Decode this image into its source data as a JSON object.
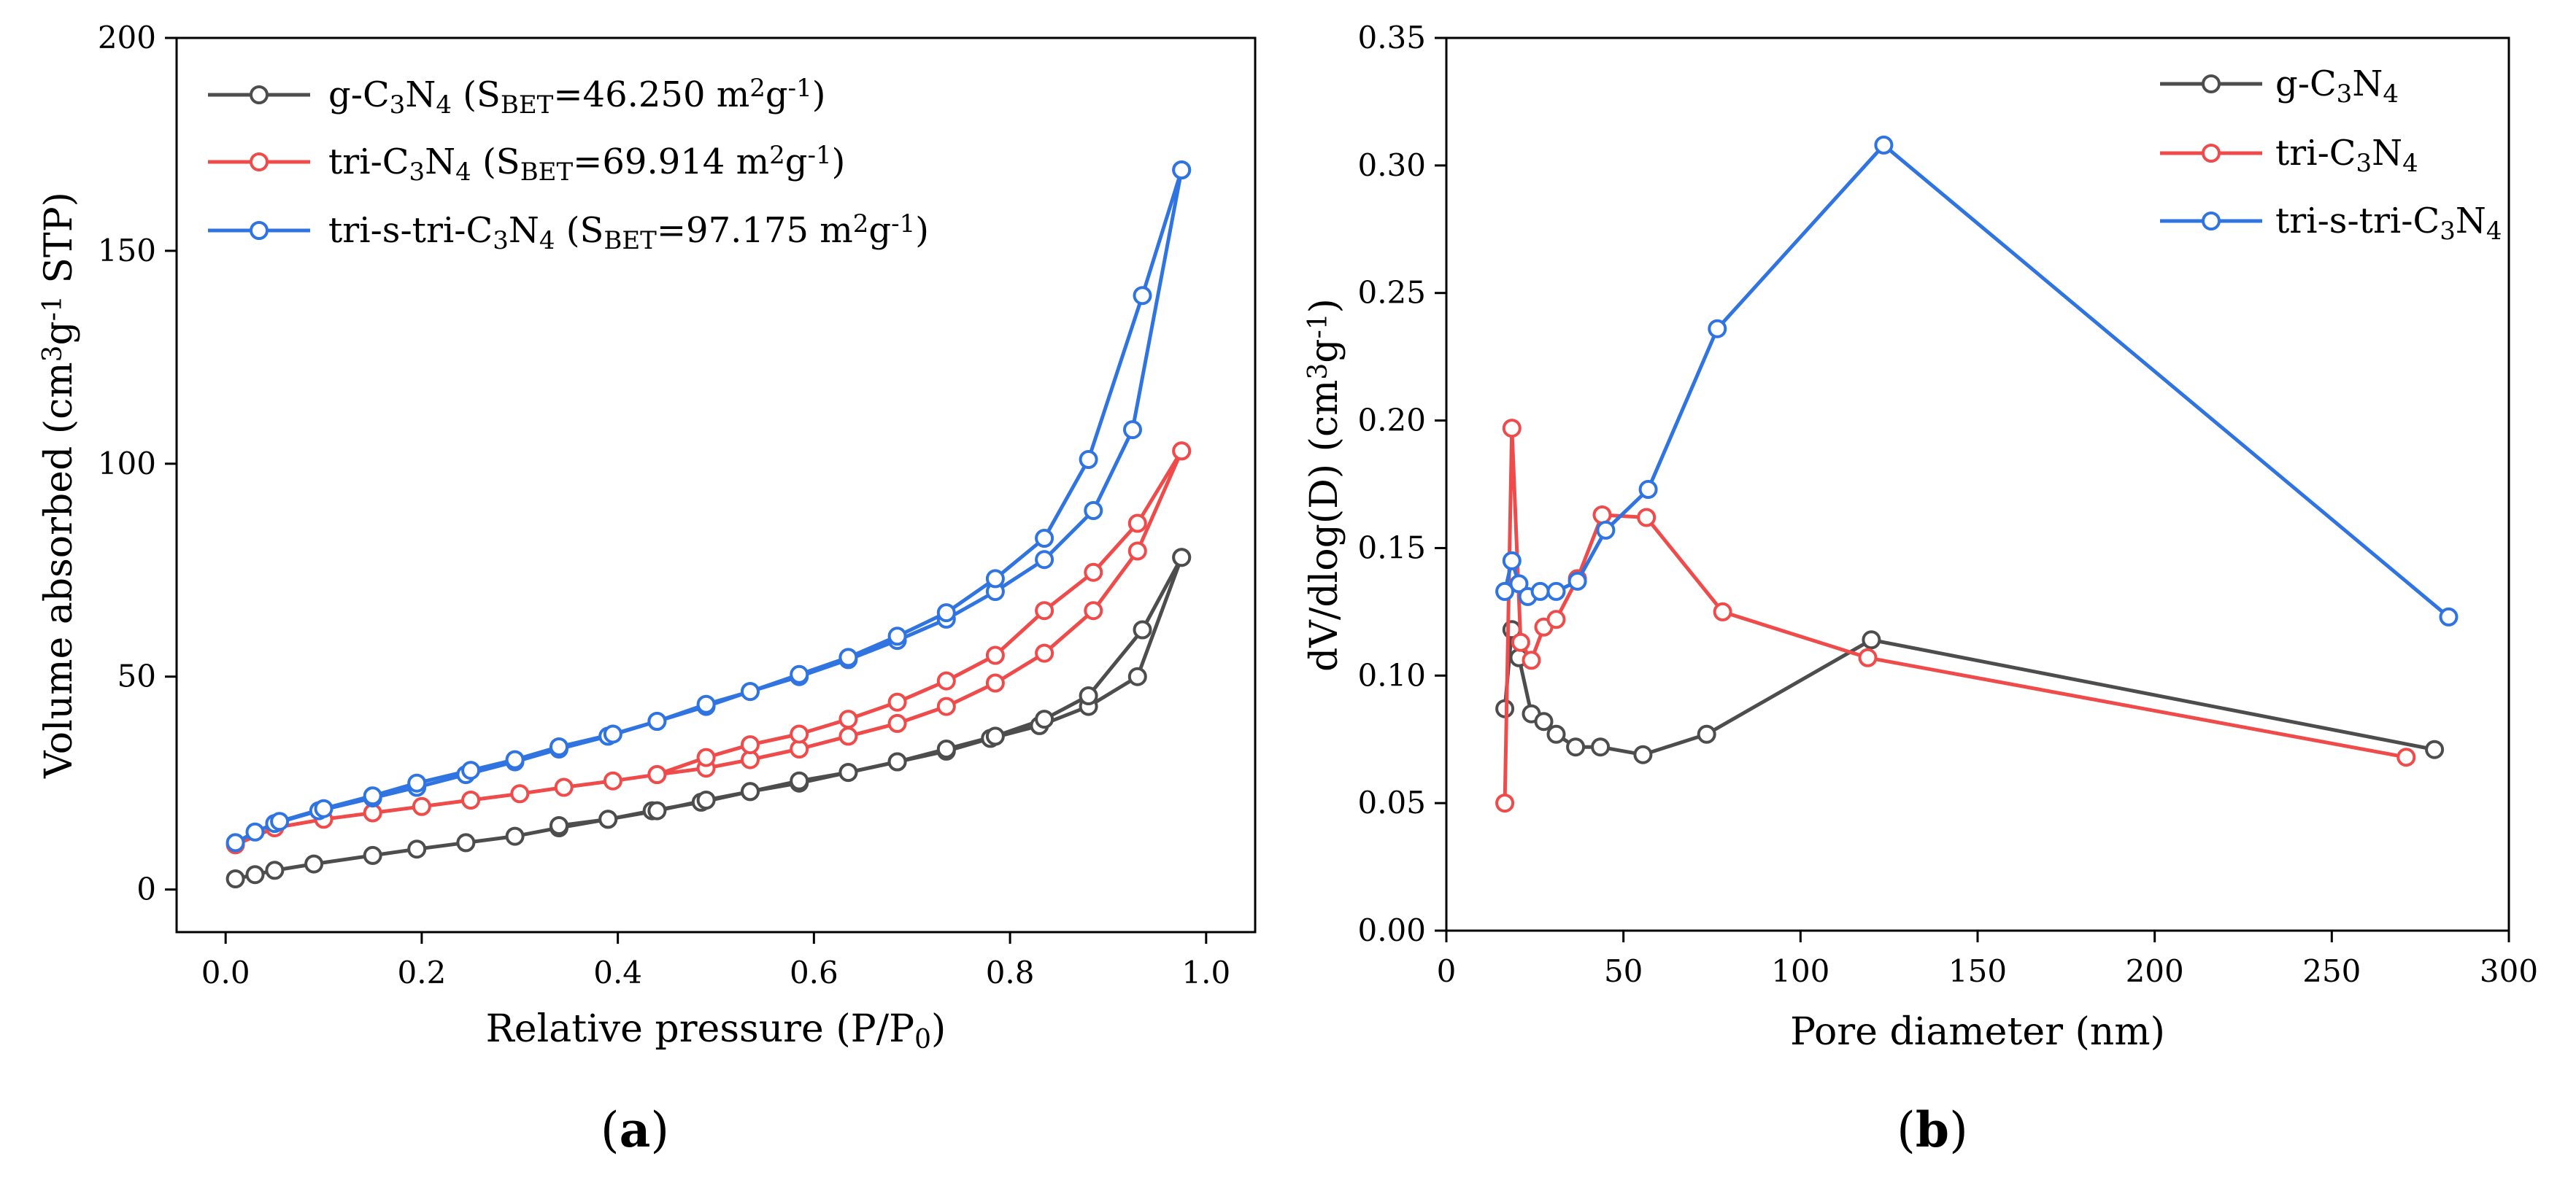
{
  "chart_data": [
    {
      "type": "line",
      "panel_label": "a",
      "xlabel": "Relative pressure (P/P",
      "xlabel_sub": "0",
      "xlabel_tail": ")",
      "ylabel": "Volume absorbed (cm",
      "ylabel_sup1": "3",
      "ylabel_mid": "g",
      "ylabel_sup2": "-1",
      "ylabel_tail": " STP)",
      "xlim": [
        -0.05,
        1.05
      ],
      "ylim": [
        -10,
        200
      ],
      "xticks": [
        0.0,
        0.2,
        0.4,
        0.6,
        0.8,
        1.0
      ],
      "xtick_labels": [
        "0.0",
        "0.2",
        "0.4",
        "0.6",
        "0.8",
        "1.0"
      ],
      "yticks": [
        0,
        50,
        100,
        150,
        200
      ],
      "ytick_labels": [
        "0",
        "50",
        "100",
        "150",
        "200"
      ],
      "legend_position": "top-left",
      "series": [
        {
          "name": "g-C3N4",
          "color": "#4d4d4d",
          "legend": {
            "pre": "g-C",
            "s1": "3",
            "mid": "N",
            "s2": "4",
            "open": " (S",
            "sub": "BET",
            "val": "=46.250 m",
            "sup1": "2",
            "g": "g",
            "sup2": "-1",
            "close": ")"
          },
          "adsorption": {
            "x": [
              0.01,
              0.03,
              0.05,
              0.09,
              0.15,
              0.195,
              0.245,
              0.295,
              0.34,
              0.39,
              0.435,
              0.485,
              0.535,
              0.585,
              0.635,
              0.685,
              0.735,
              0.78,
              0.83,
              0.88,
              0.93,
              0.975
            ],
            "y": [
              2.5,
              3.5,
              4.5,
              6,
              8,
              9.5,
              11,
              12.5,
              14.5,
              16.5,
              18.5,
              20.5,
              23,
              25,
              27.5,
              30,
              32.5,
              35.5,
              38.5,
              43,
              50,
              78
            ]
          },
          "desorption": {
            "x": [
              0.975,
              0.935,
              0.88,
              0.835,
              0.785,
              0.735,
              0.685,
              0.635,
              0.585,
              0.535,
              0.49,
              0.44,
              0.39,
              0.34
            ],
            "y": [
              78,
              61,
              45.5,
              40,
              36,
              33,
              30,
              27.5,
              25.5,
              23,
              21,
              18.5,
              16.5,
              15
            ]
          }
        },
        {
          "name": "tri-C3N4",
          "color": "#ef4b4b",
          "legend": {
            "pre": "tri-C",
            "s1": "3",
            "mid": "N",
            "s2": "4",
            "open": " (S",
            "sub": "BET",
            "val": "=69.914 m",
            "sup1": "2",
            "g": "g",
            "sup2": "-1",
            "close": ")"
          },
          "adsorption": {
            "x": [
              0.01,
              0.05,
              0.1,
              0.15,
              0.2,
              0.25,
              0.3,
              0.345,
              0.395,
              0.44,
              0.49,
              0.535,
              0.585,
              0.635,
              0.685,
              0.735,
              0.785,
              0.835,
              0.885,
              0.93,
              0.975
            ],
            "y": [
              10.5,
              14.5,
              16.5,
              18,
              19.5,
              21,
              22.5,
              24,
              25.5,
              27,
              28.5,
              30.5,
              33,
              36,
              39,
              43,
              48.5,
              55.5,
              65.5,
              79.5,
              103
            ]
          },
          "desorption": {
            "x": [
              0.975,
              0.93,
              0.885,
              0.835,
              0.785,
              0.735,
              0.685,
              0.635,
              0.585,
              0.535,
              0.49,
              0.44
            ],
            "y": [
              103,
              86,
              74.5,
              65.5,
              55,
              49,
              44,
              40,
              36.5,
              34,
              31,
              27
            ]
          }
        },
        {
          "name": "tri-s-tri-C3N4",
          "color": "#2f74e0",
          "legend": {
            "pre": "tri-s-tri-C",
            "s1": "3",
            "mid": "N",
            "s2": "4",
            "open": " (S",
            "sub": "BET",
            "val": "=97.175 m",
            "sup1": "2",
            "g": "g",
            "sup2": "-1",
            "close": ")"
          },
          "adsorption": {
            "x": [
              0.01,
              0.03,
              0.05,
              0.095,
              0.15,
              0.195,
              0.245,
              0.295,
              0.34,
              0.39,
              0.44,
              0.49,
              0.535,
              0.585,
              0.635,
              0.685,
              0.735,
              0.785,
              0.835,
              0.885,
              0.925,
              0.975
            ],
            "y": [
              11,
              13.5,
              15.5,
              18.5,
              21.5,
              24,
              27,
              30,
              33,
              36,
              39.5,
              43,
              46.5,
              50,
              54,
              58.5,
              63.5,
              70,
              77.5,
              89,
              108,
              169
            ]
          },
          "desorption": {
            "x": [
              0.975,
              0.935,
              0.88,
              0.835,
              0.785,
              0.735,
              0.685,
              0.635,
              0.585,
              0.535,
              0.49,
              0.44,
              0.395,
              0.34,
              0.295,
              0.25,
              0.195,
              0.15,
              0.1,
              0.055
            ],
            "y": [
              169,
              139.5,
              101,
              82.5,
              73,
              65,
              59.5,
              54.5,
              50.5,
              46.5,
              43.5,
              39.5,
              36.5,
              33.5,
              30.5,
              28,
              25,
              22,
              19,
              16
            ]
          }
        }
      ]
    },
    {
      "type": "line",
      "panel_label": "b",
      "xlabel": "Pore diameter (nm)",
      "ylabel": "dV/dlog(D) (cm",
      "ylabel_sup1": "3",
      "ylabel_mid": "g",
      "ylabel_sup2": "-1",
      "ylabel_tail": ")",
      "xlim": [
        0,
        300
      ],
      "ylim": [
        0.0,
        0.35
      ],
      "xticks": [
        0,
        50,
        100,
        150,
        200,
        250,
        300
      ],
      "xtick_labels": [
        "0",
        "50",
        "100",
        "150",
        "200",
        "250",
        "300"
      ],
      "yticks": [
        0.0,
        0.05,
        0.1,
        0.15,
        0.2,
        0.25,
        0.3,
        0.35
      ],
      "ytick_labels": [
        "0.00",
        "0.05",
        "0.10",
        "0.15",
        "0.20",
        "0.25",
        "0.30",
        "0.35"
      ],
      "legend_position": "top-right",
      "series": [
        {
          "name": "g-C3N4",
          "color": "#4d4d4d",
          "legend": {
            "pre": "g-C",
            "s1": "3",
            "mid": "N",
            "s2": "4"
          },
          "x": [
            16.5,
            18.5,
            20.5,
            24,
            27.5,
            31,
            36.5,
            43.5,
            55.5,
            73.5,
            120,
            279
          ],
          "y": [
            0.087,
            0.118,
            0.107,
            0.085,
            0.082,
            0.077,
            0.072,
            0.072,
            0.069,
            0.077,
            0.114,
            0.071
          ]
        },
        {
          "name": "tri-C3N4",
          "color": "#ef4b4b",
          "legend": {
            "pre": "tri-C",
            "s1": "3",
            "mid": "N",
            "s2": "4"
          },
          "x": [
            16.5,
            18.5,
            21,
            24,
            27.5,
            31,
            37,
            44,
            56.5,
            78,
            119,
            271
          ],
          "y": [
            0.05,
            0.197,
            0.113,
            0.106,
            0.119,
            0.122,
            0.138,
            0.163,
            0.162,
            0.125,
            0.107,
            0.068
          ]
        },
        {
          "name": "tri-s-tri-C3N4",
          "color": "#2f74e0",
          "legend": {
            "pre": "tri-s-tri-C",
            "s1": "3",
            "mid": "N",
            "s2": "4"
          },
          "x": [
            16.5,
            18.5,
            20.5,
            23,
            26.5,
            31,
            37,
            45,
            57,
            76.5,
            123.5,
            283
          ],
          "y": [
            0.133,
            0.145,
            0.136,
            0.131,
            0.133,
            0.133,
            0.137,
            0.157,
            0.173,
            0.236,
            0.308,
            0.123
          ]
        }
      ]
    }
  ]
}
